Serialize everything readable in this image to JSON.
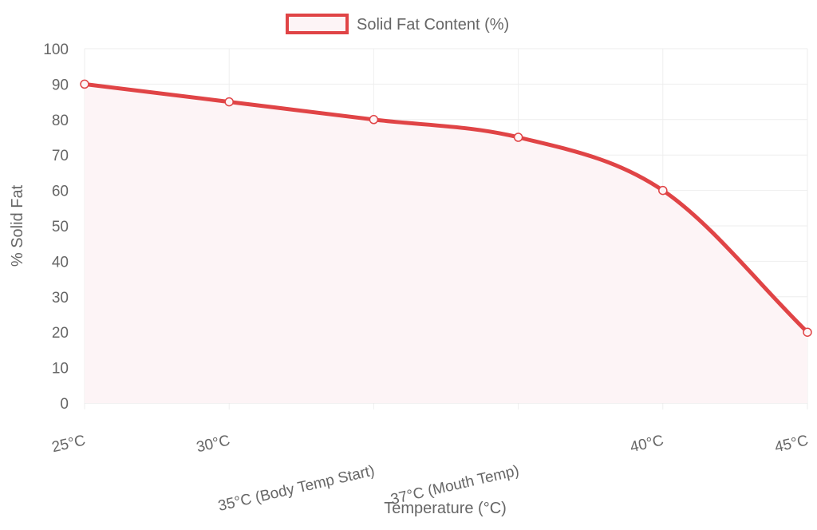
{
  "colors": {
    "series_line": "#e04446",
    "series_fill": "#fdf4f6",
    "grid": "#eeeeee",
    "text": "#666666"
  },
  "chart_data": {
    "type": "line",
    "title": "",
    "xlabel": "Temperature (°C)",
    "ylabel": "% Solid Fat",
    "categories": [
      "25°C",
      "30°C",
      "35°C (Body Temp Start)",
      "37°C (Mouth Temp)",
      "40°C",
      "45°C"
    ],
    "series": [
      {
        "name": "Solid Fat Content (%)",
        "values": [
          90,
          85,
          80,
          75,
          60,
          20
        ],
        "fill": true
      }
    ],
    "ylim": [
      0,
      100
    ],
    "yticks": [
      0,
      10,
      20,
      30,
      40,
      50,
      60,
      70,
      80,
      90,
      100
    ],
    "grid": true,
    "legend": "top-center"
  }
}
